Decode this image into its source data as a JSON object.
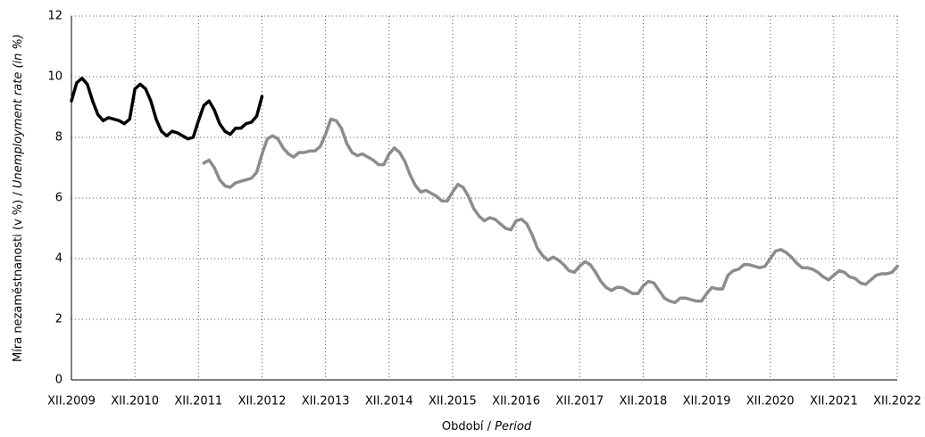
{
  "chart_data": {
    "type": "line",
    "ylabel": {
      "cs": "Míra nezaměstnanosti (v %) /",
      "en": "Unemployment rate (in %)"
    },
    "xlabel": {
      "cs": "Období /",
      "en": "Period"
    },
    "categories": [
      "XII.2009",
      null,
      null,
      null,
      null,
      null,
      null,
      null,
      null,
      null,
      null,
      null,
      "XII.2010",
      null,
      null,
      null,
      null,
      null,
      null,
      null,
      null,
      null,
      null,
      null,
      "XII.2011",
      null,
      null,
      null,
      null,
      null,
      null,
      null,
      null,
      null,
      null,
      null,
      "XII.2012",
      null,
      null,
      null,
      null,
      null,
      null,
      null,
      null,
      null,
      null,
      null,
      "XII.2013",
      null,
      null,
      null,
      null,
      null,
      null,
      null,
      null,
      null,
      null,
      null,
      "XII.2014",
      null,
      null,
      null,
      null,
      null,
      null,
      null,
      null,
      null,
      null,
      null,
      "XII.2015",
      null,
      null,
      null,
      null,
      null,
      null,
      null,
      null,
      null,
      null,
      null,
      "XII.2016",
      null,
      null,
      null,
      null,
      null,
      null,
      null,
      null,
      null,
      null,
      null,
      "XII.2017",
      null,
      null,
      null,
      null,
      null,
      null,
      null,
      null,
      null,
      null,
      null,
      "XII.2018",
      null,
      null,
      null,
      null,
      null,
      null,
      null,
      null,
      null,
      null,
      null,
      "XII.2019",
      null,
      null,
      null,
      null,
      null,
      null,
      null,
      null,
      null,
      null,
      null,
      "XII.2020",
      null,
      null,
      null,
      null,
      null,
      null,
      null,
      null,
      null,
      null,
      null,
      "XII.2021",
      null,
      null,
      null,
      null,
      null,
      null,
      null,
      null,
      null,
      null,
      null,
      "XII.2022"
    ],
    "series": [
      {
        "color": "#000000",
        "values": [
          9.2,
          9.8,
          9.95,
          9.75,
          9.2,
          8.75,
          8.55,
          8.65,
          8.6,
          8.55,
          8.45,
          8.6,
          9.6,
          9.75,
          9.6,
          9.2,
          8.6,
          8.2,
          8.05,
          8.2,
          8.15,
          8.05,
          7.95,
          8.0,
          8.55,
          9.05,
          9.2,
          8.9,
          8.45,
          8.2,
          8.1,
          8.3,
          8.3,
          8.45,
          8.5,
          8.7,
          9.35,
          null,
          null,
          null,
          null,
          null,
          null,
          null,
          null,
          null,
          null,
          null,
          null,
          null,
          null,
          null,
          null,
          null,
          null,
          null,
          null,
          null,
          null,
          null,
          null,
          null,
          null,
          null,
          null,
          null,
          null,
          null,
          null,
          null,
          null,
          null,
          null,
          null,
          null,
          null,
          null,
          null,
          null,
          null,
          null,
          null,
          null,
          null,
          null,
          null,
          null,
          null,
          null,
          null,
          null,
          null,
          null,
          null,
          null,
          null,
          null,
          null,
          null,
          null,
          null,
          null,
          null,
          null,
          null,
          null,
          null,
          null,
          null,
          null,
          null,
          null,
          null,
          null,
          null,
          null,
          null,
          null,
          null,
          null,
          null,
          null,
          null,
          null,
          null,
          null,
          null,
          null,
          null,
          null,
          null,
          null,
          null,
          null,
          null,
          null,
          null,
          null,
          null,
          null,
          null,
          null,
          null,
          null,
          null,
          null,
          null,
          null,
          null,
          null,
          null,
          null,
          null,
          null,
          null,
          null,
          null
        ]
      },
      {
        "color": "#8c8c8c",
        "values": [
          null,
          null,
          null,
          null,
          null,
          null,
          null,
          null,
          null,
          null,
          null,
          null,
          null,
          null,
          null,
          null,
          null,
          null,
          null,
          null,
          null,
          null,
          null,
          null,
          null,
          7.15,
          7.25,
          7.0,
          6.6,
          6.4,
          6.35,
          6.5,
          6.55,
          6.6,
          6.65,
          6.85,
          7.45,
          7.95,
          8.05,
          7.95,
          7.65,
          7.45,
          7.35,
          7.5,
          7.5,
          7.55,
          7.55,
          7.7,
          8.1,
          8.6,
          8.55,
          8.3,
          7.8,
          7.5,
          7.4,
          7.45,
          7.35,
          7.25,
          7.1,
          7.1,
          7.45,
          7.65,
          7.5,
          7.2,
          6.75,
          6.4,
          6.2,
          6.25,
          6.15,
          6.05,
          5.9,
          5.9,
          6.2,
          6.45,
          6.35,
          6.05,
          5.65,
          5.4,
          5.25,
          5.35,
          5.3,
          5.15,
          5.0,
          4.95,
          5.25,
          5.3,
          5.15,
          4.8,
          4.35,
          4.1,
          3.95,
          4.05,
          3.95,
          3.8,
          3.6,
          3.55,
          3.75,
          3.9,
          3.8,
          3.55,
          3.25,
          3.05,
          2.95,
          3.05,
          3.05,
          2.95,
          2.85,
          2.85,
          3.1,
          3.25,
          3.2,
          2.95,
          2.7,
          2.6,
          2.55,
          2.7,
          2.7,
          2.65,
          2.6,
          2.6,
          2.85,
          3.05,
          3.0,
          3.0,
          3.45,
          3.6,
          3.65,
          3.8,
          3.8,
          3.75,
          3.7,
          3.75,
          4.0,
          4.25,
          4.3,
          4.2,
          4.05,
          3.85,
          3.7,
          3.7,
          3.65,
          3.55,
          3.4,
          3.3,
          3.45,
          3.6,
          3.55,
          3.4,
          3.35,
          3.2,
          3.15,
          3.3,
          3.45,
          3.5,
          3.5,
          3.55,
          3.75
        ]
      }
    ],
    "ylim": [
      0,
      12
    ],
    "yticks": [
      0,
      2,
      4,
      6,
      8,
      10,
      12
    ],
    "grid": true
  }
}
